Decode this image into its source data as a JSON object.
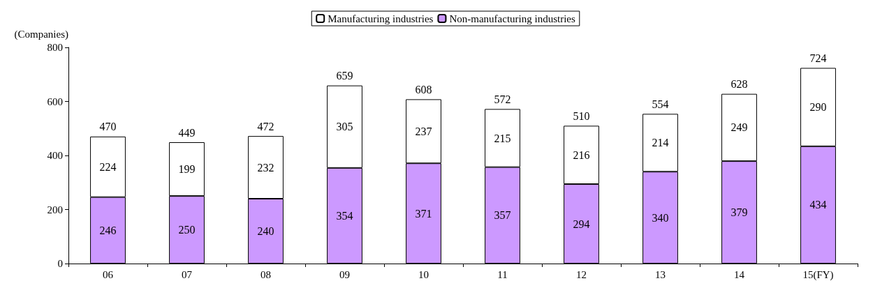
{
  "chart_data": {
    "type": "bar",
    "stacked": true,
    "ylabel": "(Companies)",
    "categories": [
      "06",
      "07",
      "08",
      "09",
      "10",
      "11",
      "12",
      "13",
      "14",
      "15(FY)"
    ],
    "series": [
      {
        "name": "Non-manufacturing industries",
        "color": "#cc99ff",
        "values": [
          246,
          250,
          240,
          354,
          371,
          357,
          294,
          340,
          379,
          434
        ]
      },
      {
        "name": "Manufacturing industries",
        "color": "#ffffff",
        "values": [
          224,
          199,
          232,
          305,
          237,
          215,
          216,
          214,
          249,
          290
        ]
      }
    ],
    "totals": [
      "470",
      "449",
      "472",
      "659",
      "608",
      "572",
      "510",
      "554",
      "628",
      "724"
    ],
    "ylim": [
      0,
      800
    ],
    "yticks": [
      0,
      200,
      400,
      600,
      800
    ],
    "grid": false,
    "legend": "top",
    "data_labels": true
  }
}
